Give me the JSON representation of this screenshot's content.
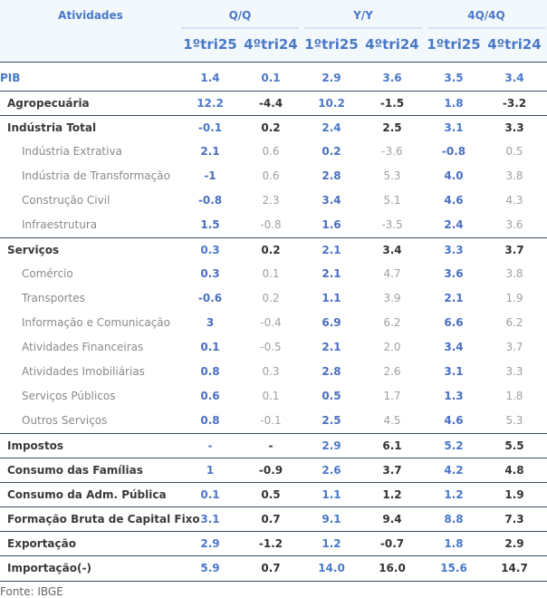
{
  "header": {
    "atividades": "Atividades",
    "groups": [
      "Q/Q",
      "Y/Y",
      "4Q/4Q"
    ],
    "periods": [
      "1ºtri25",
      "4ºtri24",
      "1ºtri25",
      "4ºtri24",
      "1ºtri25",
      "4ºtri24"
    ]
  },
  "rows": [
    {
      "label": "PIB",
      "kind": "pib",
      "values": [
        "1.4",
        "0.1",
        "2.9",
        "3.6",
        "3.5",
        "3.4"
      ]
    },
    {
      "label": "Agropecuária",
      "kind": "major",
      "values": [
        "12.2",
        "-4.4",
        "10.2",
        "-1.5",
        "1.8",
        "-3.2"
      ]
    },
    {
      "label": "Indústria Total",
      "kind": "major",
      "values": [
        "-0.1",
        "0.2",
        "2.4",
        "2.5",
        "3.1",
        "3.3"
      ]
    },
    {
      "label": "Indústria Extrativa",
      "kind": "sub",
      "values": [
        "2.1",
        "0.6",
        "0.2",
        "-3.6",
        "-0.8",
        "0.5"
      ]
    },
    {
      "label": "Indústria de Transformação",
      "kind": "sub",
      "values": [
        "-1",
        "0.6",
        "2.8",
        "5.3",
        "4.0",
        "3.8"
      ]
    },
    {
      "label": "Construção Civil",
      "kind": "sub",
      "values": [
        "-0.8",
        "2.3",
        "3.4",
        "5.1",
        "4.6",
        "4.3"
      ]
    },
    {
      "label": "Infraestrutura",
      "kind": "sub",
      "values": [
        "1.5",
        "-0.8",
        "1.6",
        "-3.5",
        "2.4",
        "3.6"
      ]
    },
    {
      "label": "Serviços",
      "kind": "major",
      "values": [
        "0.3",
        "0.2",
        "2.1",
        "3.4",
        "3.3",
        "3.7"
      ]
    },
    {
      "label": "Comércio",
      "kind": "sub",
      "values": [
        "0.3",
        "0.1",
        "2.1",
        "4.7",
        "3.6",
        "3.8"
      ]
    },
    {
      "label": "Transportes",
      "kind": "sub",
      "values": [
        "-0.6",
        "0.2",
        "1.1",
        "3.9",
        "2.1",
        "1.9"
      ]
    },
    {
      "label": "Informação e Comunicação",
      "kind": "sub",
      "values": [
        "3",
        "-0.4",
        "6.9",
        "6.2",
        "6.6",
        "6.2"
      ]
    },
    {
      "label": "Atividades Financeiras",
      "kind": "sub",
      "values": [
        "0.1",
        "-0.5",
        "2.1",
        "2.0",
        "3.4",
        "3.7"
      ]
    },
    {
      "label": "Atividades Imobiliárias",
      "kind": "sub",
      "values": [
        "0.8",
        "0.3",
        "2.8",
        "2.6",
        "3.1",
        "3.3"
      ]
    },
    {
      "label": "Serviços Públicos",
      "kind": "sub",
      "values": [
        "0.6",
        "0.1",
        "0.5",
        "1.7",
        "1.3",
        "1.8"
      ]
    },
    {
      "label": "Outros Serviços",
      "kind": "sub",
      "values": [
        "0.8",
        "-0.1",
        "2.5",
        "4.5",
        "4.6",
        "5.3"
      ]
    },
    {
      "label": "Impostos",
      "kind": "major",
      "values": [
        "-",
        "-",
        "2.9",
        "6.1",
        "5.2",
        "5.5"
      ]
    },
    {
      "label": "Consumo das Famílias",
      "kind": "major",
      "values": [
        "1",
        "-0.9",
        "2.6",
        "3.7",
        "4.2",
        "4.8"
      ]
    },
    {
      "label": "Consumo da Adm. Pública",
      "kind": "major",
      "values": [
        "0.1",
        "0.5",
        "1.1",
        "1.2",
        "1.2",
        "1.9"
      ]
    },
    {
      "label": "Formação Bruta de Capital Fixo",
      "kind": "major",
      "values": [
        "3.1",
        "0.7",
        "9.1",
        "9.4",
        "8.8",
        "7.3"
      ]
    },
    {
      "label": "Exportação",
      "kind": "major",
      "values": [
        "2.9",
        "-1.2",
        "1.2",
        "-0.7",
        "1.8",
        "2.9"
      ]
    },
    {
      "label": "Importação(-)",
      "kind": "major",
      "values": [
        "5.9",
        "0.7",
        "14.0",
        "16.0",
        "15.6",
        "14.7"
      ]
    }
  ],
  "source": "Fonte: IBGE"
}
